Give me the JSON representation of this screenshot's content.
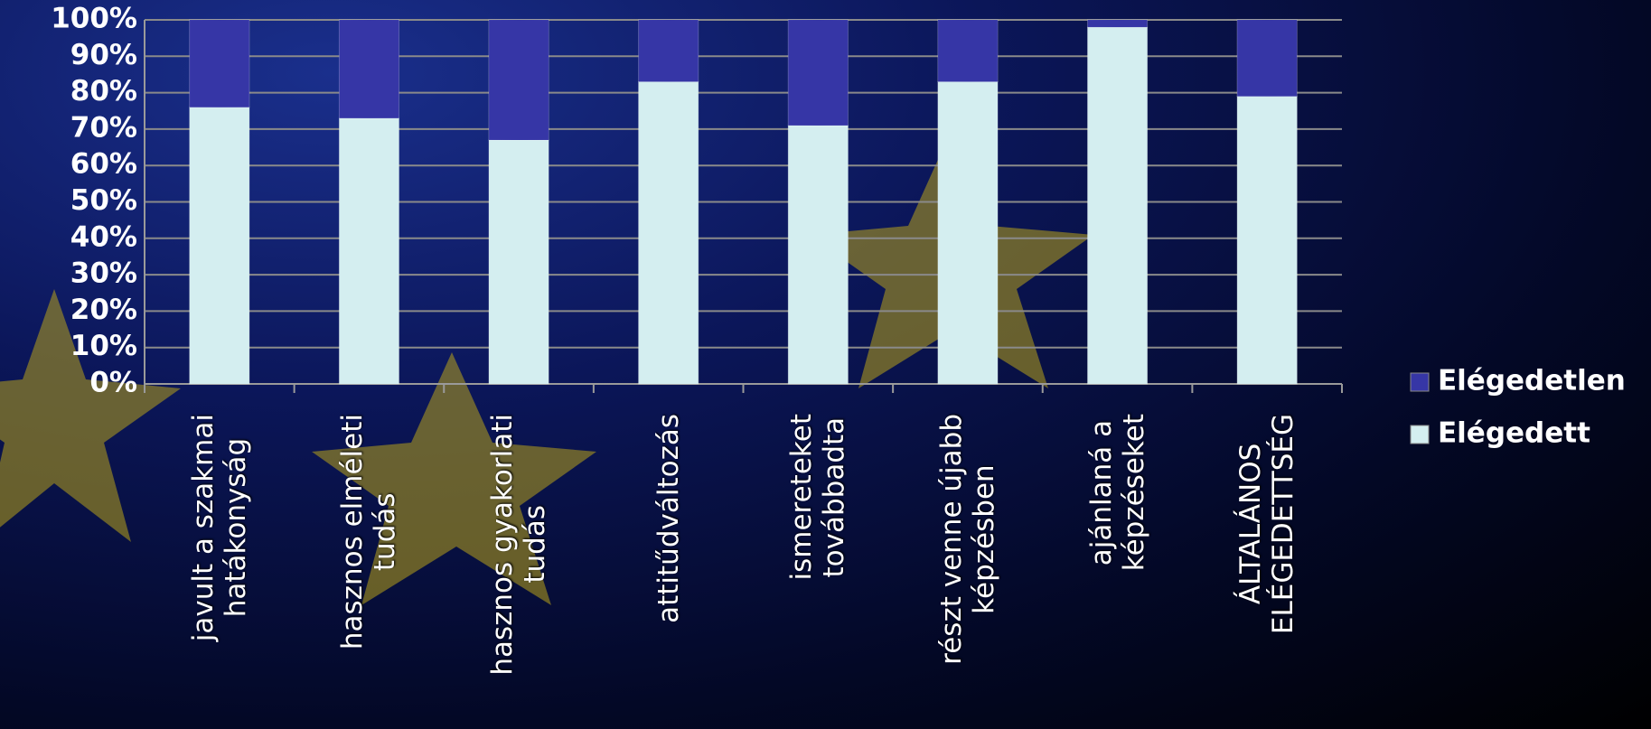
{
  "chart_data": {
    "type": "stacked_bar",
    "categories": [
      "javult a szakmai\nhatákonyság",
      "hasznos elméleti\ntudás",
      "hasznos gyakorlati\ntudás",
      "attitűdváltozás",
      "ismereteket\ntovábbadta",
      "részt venne újabb\nképzésben",
      "ajánlaná a\nképzéseket",
      "ÁLTALÁNOS\nELÉGEDETTSÉG"
    ],
    "series": [
      {
        "name": "Elégedett",
        "color": "#d4eef0",
        "values": [
          76,
          73,
          67,
          83,
          71,
          83,
          98,
          79
        ]
      },
      {
        "name": "Elégedetlen",
        "color": "#3636a6",
        "values": [
          24,
          27,
          33,
          17,
          29,
          17,
          2,
          21
        ]
      }
    ],
    "ylim": [
      0,
      100
    ],
    "yticks": [
      {
        "value": 0,
        "label": "0%"
      },
      {
        "value": 10,
        "label": "10%"
      },
      {
        "value": 20,
        "label": "20%"
      },
      {
        "value": 30,
        "label": "30%"
      },
      {
        "value": 40,
        "label": "40%"
      },
      {
        "value": 50,
        "label": "50%"
      },
      {
        "value": 60,
        "label": "60%"
      },
      {
        "value": 70,
        "label": "70%"
      },
      {
        "value": 80,
        "label": "80%"
      },
      {
        "value": 90,
        "label": "90%"
      },
      {
        "value": 100,
        "label": "100%"
      }
    ],
    "grid": true,
    "legend": "right"
  }
}
